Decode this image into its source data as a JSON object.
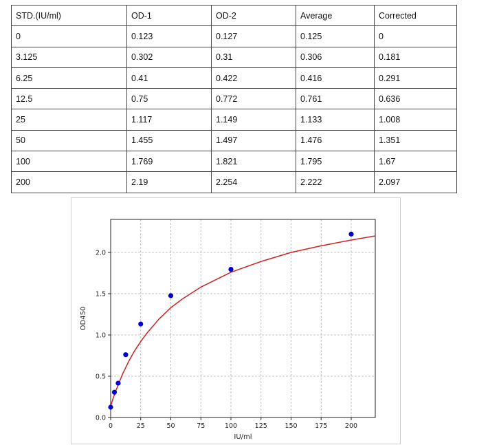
{
  "table": {
    "headers": [
      "STD.(IU/ml)",
      "OD-1",
      "OD-2",
      "Average",
      "Corrected"
    ],
    "rows": [
      [
        "0",
        "0.123",
        "0.127",
        "0.125",
        "0"
      ],
      [
        "3.125",
        "0.302",
        "0.31",
        "0.306",
        "0.181"
      ],
      [
        "6.25",
        "0.41",
        "0.422",
        "0.416",
        "0.291"
      ],
      [
        "12.5",
        "0.75",
        "0.772",
        "0.761",
        "0.636"
      ],
      [
        "25",
        "1.117",
        "1.149",
        "1.133",
        "1.008"
      ],
      [
        "50",
        "1.455",
        "1.497",
        "1.476",
        "1.351"
      ],
      [
        "100",
        "1.769",
        "1.821",
        "1.795",
        "1.67"
      ],
      [
        "200",
        "2.19",
        "2.254",
        "2.222",
        "2.097"
      ]
    ]
  },
  "chart_data": {
    "type": "scatter",
    "title": "",
    "xlabel": "IU/ml",
    "ylabel": "OD450",
    "xlim": [
      0,
      220
    ],
    "ylim": [
      0,
      2.4
    ],
    "xticks": [
      "0",
      "25",
      "50",
      "75",
      "100",
      "125",
      "150",
      "175",
      "200"
    ],
    "yticks": [
      "0.0",
      "0.5",
      "1.0",
      "1.5",
      "2.0"
    ],
    "grid": true,
    "points": {
      "x": [
        0,
        3.125,
        6.25,
        12.5,
        25,
        50,
        100,
        200
      ],
      "y": [
        0.125,
        0.306,
        0.416,
        0.761,
        1.133,
        1.476,
        1.795,
        2.222
      ]
    },
    "fit_curve": {
      "x": [
        0,
        2,
        5,
        10,
        15,
        20,
        25,
        30,
        40,
        50,
        60,
        75,
        100,
        125,
        150,
        175,
        200,
        220
      ],
      "y": [
        0.14,
        0.23,
        0.35,
        0.53,
        0.68,
        0.81,
        0.92,
        1.02,
        1.19,
        1.33,
        1.44,
        1.58,
        1.76,
        1.89,
        2.0,
        2.08,
        2.15,
        2.2
      ]
    },
    "colors": {
      "points": "#0000cc",
      "curve": "#cc2222",
      "grid": "#b0b0b0"
    }
  }
}
